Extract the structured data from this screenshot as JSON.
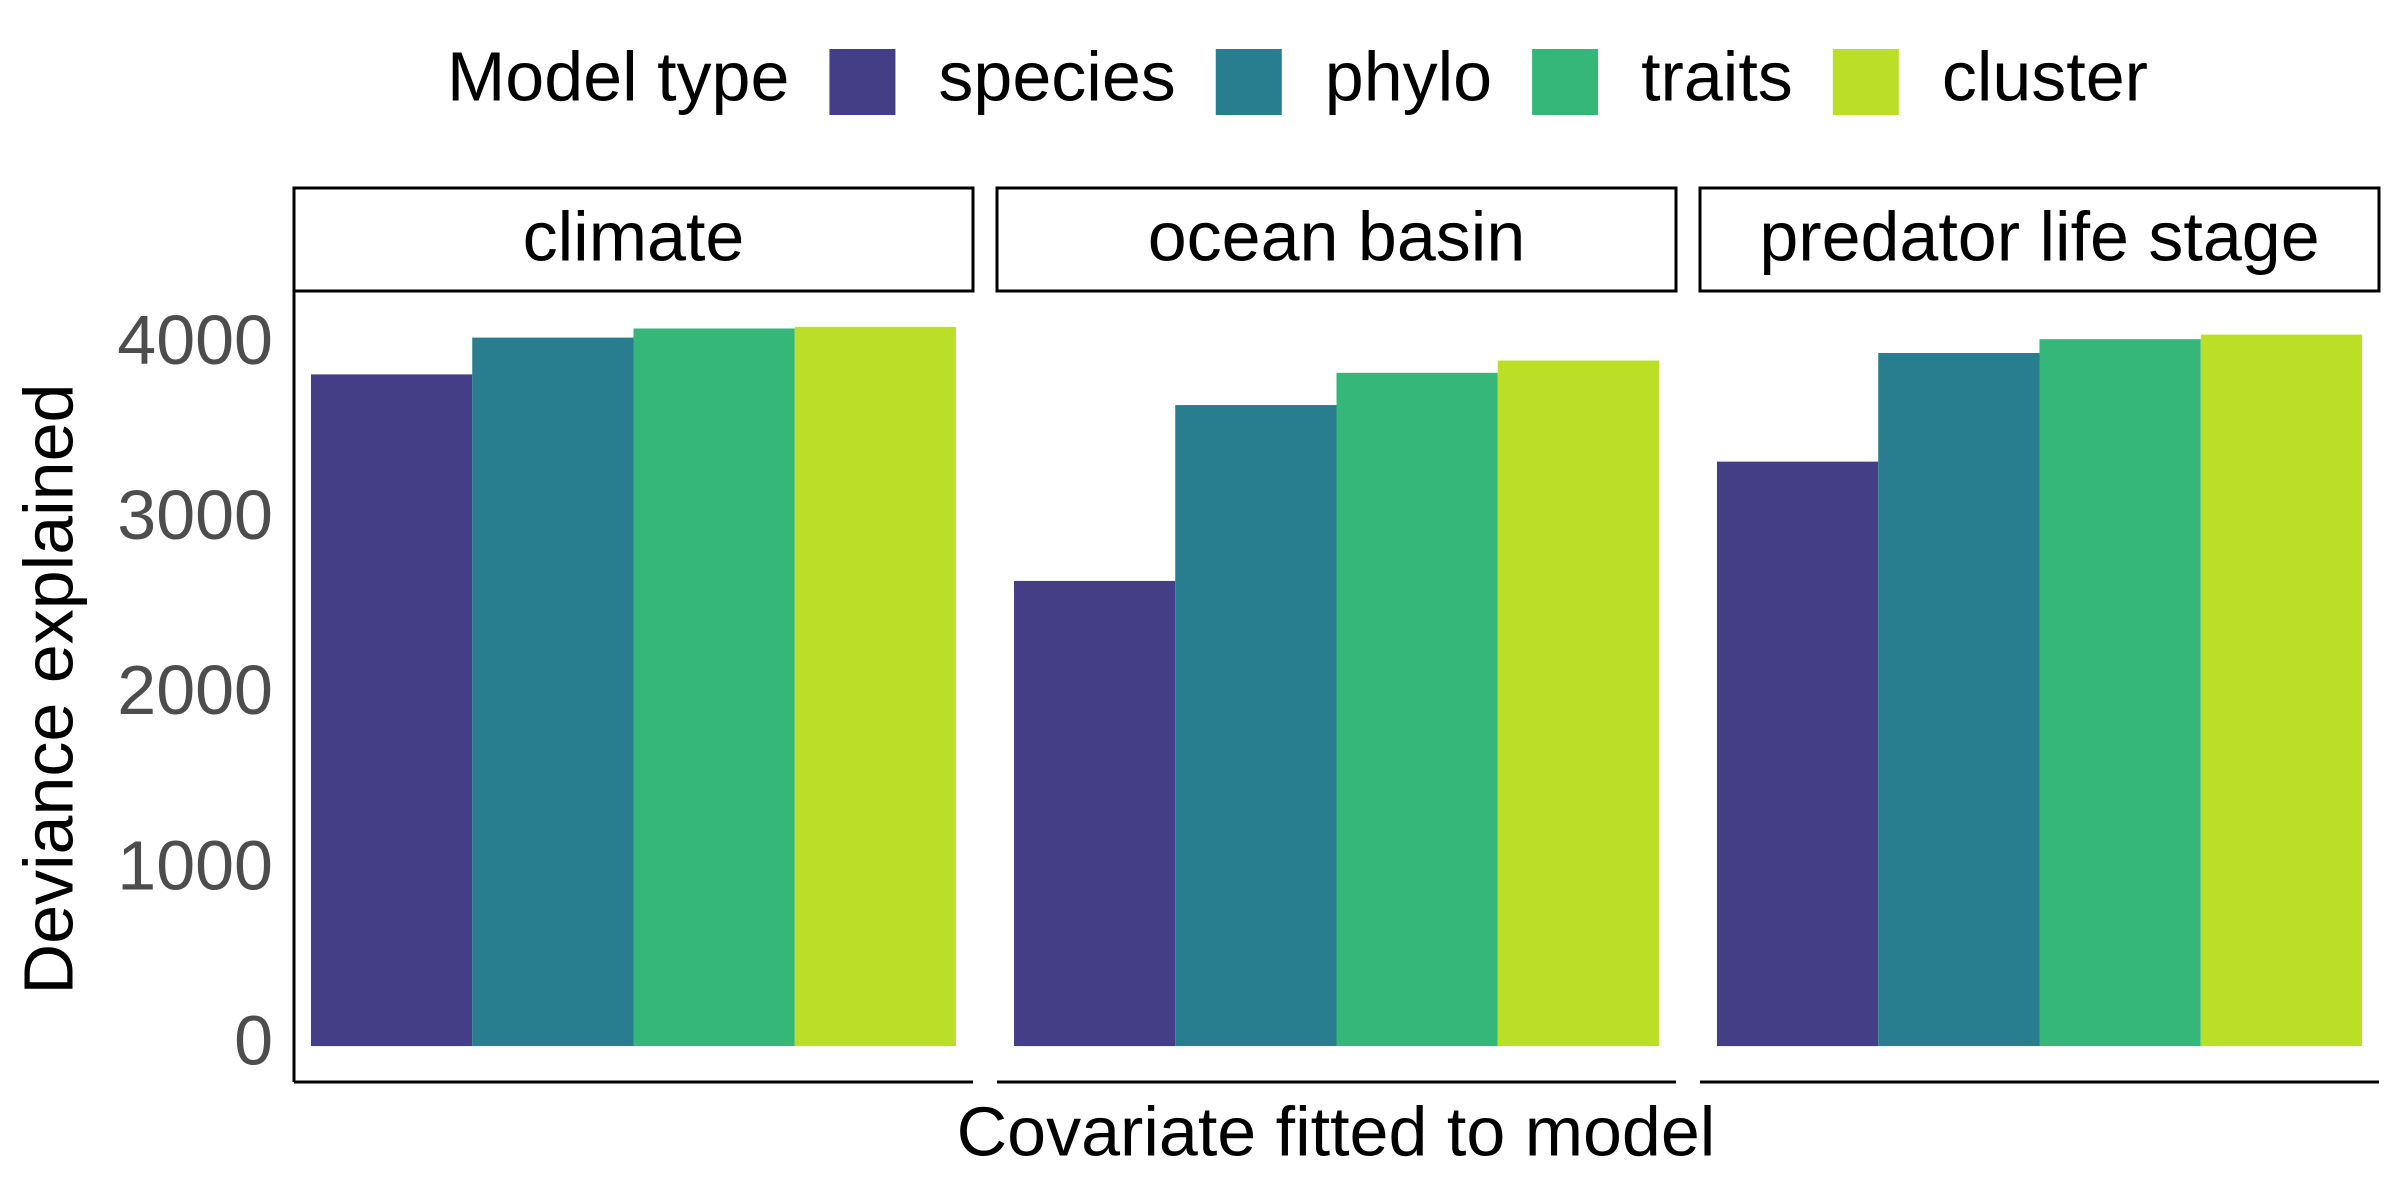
{
  "chart_data": {
    "type": "bar",
    "x_label": "Covariate fitted to model",
    "y_label": "Deviance explained",
    "legend_title": "Model type",
    "legend_position": "top",
    "categories": [
      "climate",
      "ocean basin",
      "predator life stage"
    ],
    "series": [
      {
        "name": "species",
        "color": "#433e85",
        "values": [
          3834,
          2655,
          3336
        ]
      },
      {
        "name": "phylo",
        "color": "#287d8e",
        "values": [
          4044,
          3659,
          3956
        ]
      },
      {
        "name": "traits",
        "color": "#35b779",
        "values": [
          4096,
          3843,
          4035
        ]
      },
      {
        "name": "cluster",
        "color": "#bbdf27",
        "values": [
          4105,
          3913,
          4061
        ]
      }
    ],
    "ylim": [
      -205,
      4310
    ],
    "yticks": [
      0,
      1000,
      2000,
      3000,
      4000
    ],
    "grid": false
  }
}
